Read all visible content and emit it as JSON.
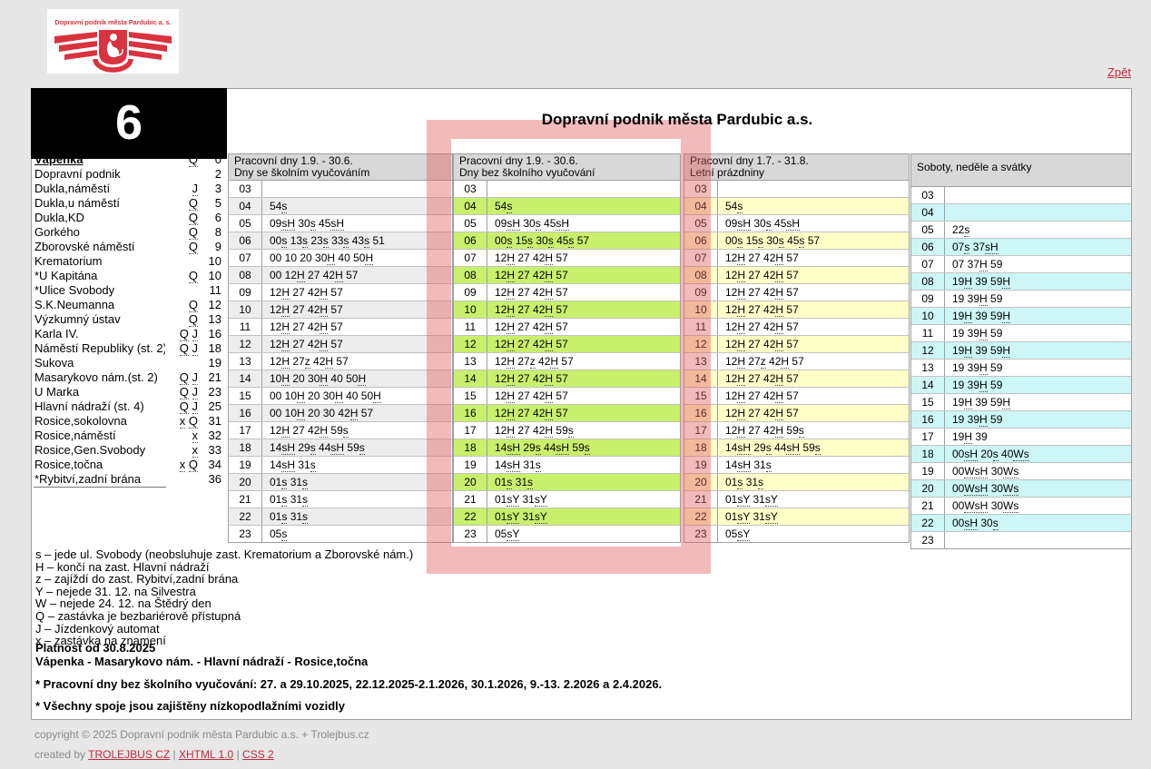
{
  "page": {
    "back_link": "Zpět",
    "line_number": "6",
    "title": "Dopravní podnik města Pardubic a.s.",
    "logo_text": "Dopravní podnik města Pardubic a. s."
  },
  "colors": {
    "accent_red": "#d9333f",
    "highlight_frame": "rgba(224,91,91,0.42)",
    "header_gray": "#d8d8d8",
    "link_red": "#c2293d",
    "zebra_gray": "#ededed",
    "zebra_green": "#c9f06c",
    "zebra_yellow": "#ffffc8",
    "zebra_cyan": "#cdf6f6"
  },
  "stops": [
    {
      "name": "Vápenka",
      "flags": [
        "Q"
      ],
      "min": "0",
      "first": true
    },
    {
      "name": "Dopravní podnik",
      "flags": [],
      "min": "2"
    },
    {
      "name": "Dukla,náměstí",
      "flags": [
        "J"
      ],
      "min": "3"
    },
    {
      "name": "Dukla,u náměstí",
      "flags": [
        "Q"
      ],
      "min": "5"
    },
    {
      "name": "Dukla,KD",
      "flags": [
        "Q"
      ],
      "min": "6"
    },
    {
      "name": "Gorkého",
      "flags": [
        "Q"
      ],
      "min": "8"
    },
    {
      "name": "Zborovské náměstí",
      "flags": [
        "Q"
      ],
      "min": "9"
    },
    {
      "name": "Krematorium",
      "flags": [],
      "min": "10"
    },
    {
      "name": "*U Kapitána",
      "flags": [
        "Q"
      ],
      "min": "10"
    },
    {
      "name": "*Ulice Svobody",
      "flags": [],
      "min": "11"
    },
    {
      "name": "S.K.Neumanna",
      "flags": [
        "Q"
      ],
      "min": "12"
    },
    {
      "name": "Výzkumný ústav",
      "flags": [
        "Q"
      ],
      "min": "13"
    },
    {
      "name": "Karla IV.",
      "flags": [
        "Q",
        "J"
      ],
      "min": "16"
    },
    {
      "name": "Náměstí Republiky (st. 2)",
      "flags": [
        "Q",
        "J"
      ],
      "min": "18"
    },
    {
      "name": "Sukova",
      "flags": [],
      "min": "19"
    },
    {
      "name": "Masarykovo nám.(st. 2)",
      "flags": [
        "Q",
        "J"
      ],
      "min": "21"
    },
    {
      "name": "U Marka",
      "flags": [
        "Q",
        "J"
      ],
      "min": "23"
    },
    {
      "name": "Hlavní nádraží (st. 4)",
      "flags": [
        "Q",
        "J"
      ],
      "min": "25"
    },
    {
      "name": "Rosice,sokolovna",
      "flags": [
        "x",
        "Q"
      ],
      "min": "31"
    },
    {
      "name": "Rosice,náměstí",
      "flags": [
        "x"
      ],
      "min": "32"
    },
    {
      "name": "Rosice,Gen.Svobody",
      "flags": [
        "x"
      ],
      "min": "33"
    },
    {
      "name": "Rosice,točna",
      "flags": [
        "x",
        "Q"
      ],
      "min": "34"
    },
    {
      "name": "*Rybitví,zadní brána",
      "flags": [],
      "min": "36"
    }
  ],
  "timetables": [
    {
      "title1": "Pracovní dny 1.9. - 30.6.",
      "title2": "Dny se školním vyučováním",
      "zebra": "#ededed",
      "highlighted": false,
      "rows": [
        {
          "h": "03",
          "m": ""
        },
        {
          "h": "04",
          "m": "54s"
        },
        {
          "h": "05",
          "m": "09sH 30s 45sH"
        },
        {
          "h": "06",
          "m": "00s 13s 23s 33s 43s 51"
        },
        {
          "h": "07",
          "m": "00 10 20 30H 40 50H"
        },
        {
          "h": "08",
          "m": "00 12H 27 42H 57"
        },
        {
          "h": "09",
          "m": "12H 27 42H 57"
        },
        {
          "h": "10",
          "m": "12H 27 42H 57"
        },
        {
          "h": "11",
          "m": "12H 27 42H 57"
        },
        {
          "h": "12",
          "m": "12H 27 42H 57"
        },
        {
          "h": "13",
          "m": "12H 27z 42H 57"
        },
        {
          "h": "14",
          "m": "10H 20 30H 40 50H"
        },
        {
          "h": "15",
          "m": "00 10H 20 30H 40 50H"
        },
        {
          "h": "16",
          "m": "00 10H 20 30 42H 57"
        },
        {
          "h": "17",
          "m": "12H 27 42H 59s"
        },
        {
          "h": "18",
          "m": "14sH 29s 44sH 59s"
        },
        {
          "h": "19",
          "m": "14sH 31s"
        },
        {
          "h": "20",
          "m": "01s 31s"
        },
        {
          "h": "21",
          "m": "01s 31s"
        },
        {
          "h": "22",
          "m": "01s 31s"
        },
        {
          "h": "23",
          "m": "05s"
        }
      ]
    },
    {
      "title1": "Pracovní dny 1.9. - 30.6.",
      "title2": "Dny bez školního vyučování",
      "zebra": "#c9f06c",
      "highlighted": true,
      "rows": [
        {
          "h": "03",
          "m": ""
        },
        {
          "h": "04",
          "m": "54s"
        },
        {
          "h": "05",
          "m": "09sH 30s 45sH"
        },
        {
          "h": "06",
          "m": "00s 15s 30s 45s 57"
        },
        {
          "h": "07",
          "m": "12H 27 42H 57"
        },
        {
          "h": "08",
          "m": "12H 27 42H 57"
        },
        {
          "h": "09",
          "m": "12H 27 42H 57"
        },
        {
          "h": "10",
          "m": "12H 27 42H 57"
        },
        {
          "h": "11",
          "m": "12H 27 42H 57"
        },
        {
          "h": "12",
          "m": "12H 27 42H 57"
        },
        {
          "h": "13",
          "m": "12H 27z 42H 57"
        },
        {
          "h": "14",
          "m": "12H 27 42H 57"
        },
        {
          "h": "15",
          "m": "12H 27 42H 57"
        },
        {
          "h": "16",
          "m": "12H 27 42H 57"
        },
        {
          "h": "17",
          "m": "12H 27 42H 59s"
        },
        {
          "h": "18",
          "m": "14sH 29s 44sH 59s"
        },
        {
          "h": "19",
          "m": "14sH 31s"
        },
        {
          "h": "20",
          "m": "01s 31s"
        },
        {
          "h": "21",
          "m": "01sY 31sY"
        },
        {
          "h": "22",
          "m": "01sY 31sY"
        },
        {
          "h": "23",
          "m": "05sY"
        }
      ]
    },
    {
      "title1": "Pracovní dny 1.7. - 31.8.",
      "title2": "Letní prázdniny",
      "zebra": "#ffffc8",
      "highlighted": false,
      "rows": [
        {
          "h": "03",
          "m": ""
        },
        {
          "h": "04",
          "m": "54s"
        },
        {
          "h": "05",
          "m": "09sH 30s 45sH"
        },
        {
          "h": "06",
          "m": "00s 15s 30s 45s 57"
        },
        {
          "h": "07",
          "m": "12H 27 42H 57"
        },
        {
          "h": "08",
          "m": "12H 27 42H 57"
        },
        {
          "h": "09",
          "m": "12H 27 42H 57"
        },
        {
          "h": "10",
          "m": "12H 27 42H 57"
        },
        {
          "h": "11",
          "m": "12H 27 42H 57"
        },
        {
          "h": "12",
          "m": "12H 27 42H 57"
        },
        {
          "h": "13",
          "m": "12H 27z 42H 57"
        },
        {
          "h": "14",
          "m": "12H 27 42H 57"
        },
        {
          "h": "15",
          "m": "12H 27 42H 57"
        },
        {
          "h": "16",
          "m": "12H 27 42H 57"
        },
        {
          "h": "17",
          "m": "12H 27 42H 59s"
        },
        {
          "h": "18",
          "m": "14sH 29s 44sH 59s"
        },
        {
          "h": "19",
          "m": "14sH 31s"
        },
        {
          "h": "20",
          "m": "01s 31s"
        },
        {
          "h": "21",
          "m": "01sY 31sY"
        },
        {
          "h": "22",
          "m": "01sY 31sY"
        },
        {
          "h": "23",
          "m": "05sY"
        }
      ]
    },
    {
      "title1": "Soboty, neděle a svátky",
      "title2": "",
      "zebra": "#cdf6f6",
      "highlighted": false,
      "rows": [
        {
          "h": "03",
          "m": ""
        },
        {
          "h": "04",
          "m": ""
        },
        {
          "h": "05",
          "m": "22s"
        },
        {
          "h": "06",
          "m": "07s 37sH"
        },
        {
          "h": "07",
          "m": "07 37H 59"
        },
        {
          "h": "08",
          "m": "19H 39 59H"
        },
        {
          "h": "09",
          "m": "19 39H 59"
        },
        {
          "h": "10",
          "m": "19H 39 59H"
        },
        {
          "h": "11",
          "m": "19 39H 59"
        },
        {
          "h": "12",
          "m": "19H 39 59H"
        },
        {
          "h": "13",
          "m": "19 39H 59"
        },
        {
          "h": "14",
          "m": "19 39H 59"
        },
        {
          "h": "15",
          "m": "19H 39 59H"
        },
        {
          "h": "16",
          "m": "19 39H 59"
        },
        {
          "h": "17",
          "m": "19H 39"
        },
        {
          "h": "18",
          "m": "00sH 20s 40Ws"
        },
        {
          "h": "19",
          "m": "00WsH 30Ws"
        },
        {
          "h": "20",
          "m": "00WsH 30Ws"
        },
        {
          "h": "21",
          "m": "00WsH 30Ws"
        },
        {
          "h": "22",
          "m": "00sH 30s"
        },
        {
          "h": "23",
          "m": ""
        }
      ]
    }
  ],
  "legend": [
    "s – jede ul. Svobody (neobsluhuje zast. Krematorium a Zborovské nám.)",
    "H – končí na zast. Hlavní nádraží",
    "z – zajíždí do zast. Rybitví,zadní brána",
    "Y – nejede 31. 12. na Silvestra",
    "W – nejede 24. 12. na Štědrý den",
    "Q – zastávka je bezbariérově přístupná",
    "J – Jízdenkový automat",
    "x – zastávka na znamení"
  ],
  "validity": {
    "line1": "Platnost od 30.8.2025",
    "line2": "Vápenka - Masarykovo nám. - Hlavní nádraží - Rosice,točna"
  },
  "notes": [
    "* Pracovní dny bez školního vyučování: 27. a 29.10.2025, 22.12.2025-2.1.2026, 30.1.2026, 9.-13. 2.2026 a 2.4.2026.",
    "* Všechny spoje jsou zajištěny nízkopodlažními vozidly"
  ],
  "footer": {
    "copyright": "copyright © 2025 Dopravní podnik města Pardubic a.s. + Trolejbus.cz",
    "created_by": "created by",
    "links": [
      "TROLEJBUS CZ",
      "XHTML 1.0",
      "CSS 2"
    ],
    "separator": "|"
  }
}
